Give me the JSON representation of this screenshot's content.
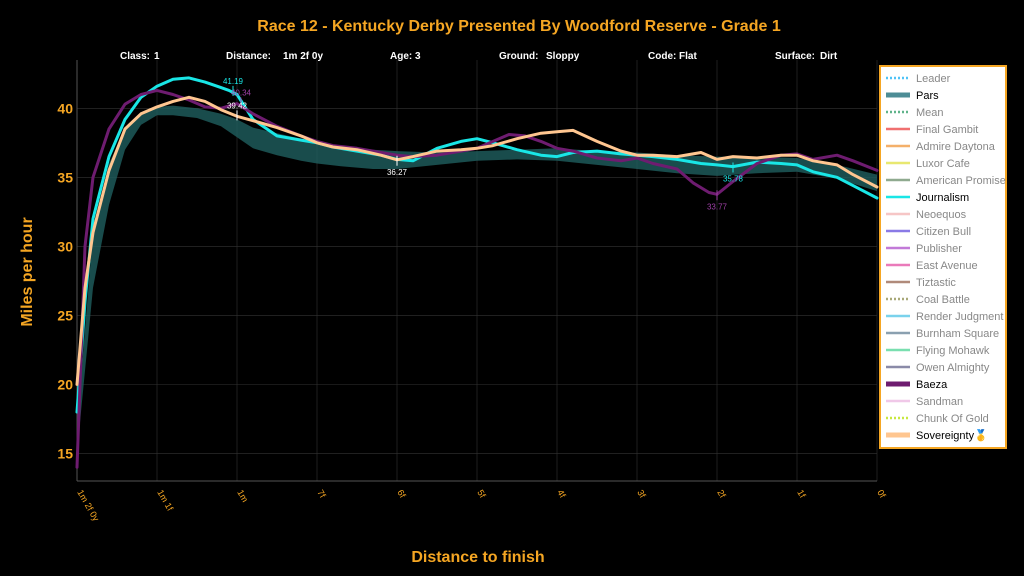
{
  "chart_data": {
    "type": "line",
    "title": "Race 12 - Kentucky Derby Presented By Woodford Reserve - Grade 1",
    "race_info": [
      {
        "key": "Class:",
        "value": "1"
      },
      {
        "key": "Distance:",
        "value": "1m 2f 0y"
      },
      {
        "key": "Age:",
        "value": "3"
      },
      {
        "key": "Ground:",
        "value": "Sloppy"
      },
      {
        "key": "Code:",
        "value": "Flat"
      },
      {
        "key": "Surface:",
        "value": "Dirt"
      }
    ],
    "xlabel": "Distance to finish",
    "ylabel": "Miles per hour",
    "xlim": [
      10,
      0
    ],
    "ylim": [
      13,
      43.5
    ],
    "y_ticks": [
      15,
      20,
      25,
      30,
      35,
      40
    ],
    "x_ticks": [
      {
        "value": 10,
        "label": "1m 2f 0y"
      },
      {
        "value": 9,
        "label": "1m 1f"
      },
      {
        "value": 8,
        "label": "1m"
      },
      {
        "value": 7,
        "label": "7f"
      },
      {
        "value": 6,
        "label": "6f"
      },
      {
        "value": 5,
        "label": "5f"
      },
      {
        "value": 4,
        "label": "4f"
      },
      {
        "value": 3,
        "label": "3f"
      },
      {
        "value": 2,
        "label": "2f"
      },
      {
        "value": 1,
        "label": "1f"
      },
      {
        "value": 0,
        "label": "0f"
      }
    ],
    "grid": true,
    "legend_position": "right",
    "pars_band": {
      "name": "Pars",
      "color": "#1f5f5f",
      "x": [
        10,
        9.8,
        9.6,
        9.4,
        9.2,
        9,
        8.8,
        8.5,
        8.2,
        8,
        7.8,
        7.5,
        7.2,
        7,
        6.7,
        6.3,
        6,
        5.5,
        5,
        4.5,
        4,
        3.5,
        3,
        2.5,
        2,
        1.5,
        1,
        0.5,
        0
      ],
      "upper": [
        17,
        31,
        36,
        38.5,
        39.6,
        40.1,
        40.2,
        40.0,
        39.6,
        39.2,
        38.6,
        38.2,
        37.8,
        37.5,
        37.3,
        37.0,
        36.9,
        36.8,
        36.9,
        37.0,
        37.1,
        36.9,
        36.8,
        36.6,
        36.5,
        36.5,
        36.4,
        35.9,
        35.2
      ],
      "lower": [
        15,
        27,
        33,
        37,
        38.8,
        39.5,
        39.5,
        39.3,
        38.7,
        37.9,
        37.1,
        36.6,
        36.2,
        36.0,
        35.8,
        35.6,
        35.6,
        35.9,
        36.2,
        36.3,
        36.2,
        35.9,
        35.6,
        35.3,
        35.1,
        35.3,
        35.4,
        34.9,
        34.0
      ]
    },
    "series": [
      {
        "name": "Journalism",
        "color": "#19e6e6",
        "x": [
          10,
          9.9,
          9.8,
          9.6,
          9.4,
          9.2,
          9,
          8.8,
          8.6,
          8.4,
          8.2,
          8.1,
          8,
          7.8,
          7.5,
          7.2,
          7,
          6.8,
          6.5,
          6.2,
          6,
          5.8,
          5.5,
          5.2,
          5,
          4.8,
          4.5,
          4.2,
          4,
          3.8,
          3.5,
          3.2,
          3,
          2.8,
          2.5,
          2.2,
          2,
          1.8,
          1.5,
          1.2,
          1,
          0.8,
          0.5,
          0.3,
          0
        ],
        "y": [
          18,
          26,
          32,
          36.5,
          39.2,
          40.8,
          41.6,
          42.1,
          42.2,
          41.9,
          41.5,
          41.3,
          41.0,
          39.2,
          38.0,
          37.7,
          37.5,
          37.2,
          36.9,
          36.6,
          36.3,
          36.2,
          37.1,
          37.6,
          37.8,
          37.5,
          37.0,
          36.6,
          36.5,
          36.8,
          36.9,
          36.7,
          36.6,
          36.5,
          36.3,
          36.0,
          35.9,
          35.78,
          36.1,
          36.0,
          35.9,
          35.4,
          35.0,
          34.4,
          33.5
        ]
      },
      {
        "name": "Baeza",
        "color": "#6e1c70",
        "x": [
          10,
          9.9,
          9.8,
          9.6,
          9.4,
          9.2,
          9,
          8.8,
          8.6,
          8.4,
          8.2,
          8,
          7.8,
          7.5,
          7.2,
          7,
          6.8,
          6.5,
          6.2,
          6,
          5.8,
          5.5,
          5.2,
          5,
          4.8,
          4.6,
          4.4,
          4.2,
          4,
          3.8,
          3.5,
          3.2,
          3,
          2.8,
          2.5,
          2.3,
          2.1,
          2,
          1.8,
          1.5,
          1.2,
          1,
          0.8,
          0.5,
          0.3,
          0
        ],
        "y": [
          14,
          30,
          35,
          38.5,
          40.3,
          41.0,
          41.3,
          41.0,
          40.6,
          40.1,
          40.0,
          40.34,
          39.6,
          38.7,
          38.0,
          37.6,
          37.3,
          37.1,
          36.8,
          36.6,
          36.5,
          36.6,
          36.9,
          37.1,
          37.6,
          38.1,
          38.0,
          37.6,
          37.1,
          36.9,
          36.4,
          36.2,
          36.4,
          36.0,
          35.6,
          34.6,
          33.9,
          33.77,
          34.7,
          36.0,
          36.6,
          36.7,
          36.3,
          36.6,
          36.2,
          35.5
        ]
      },
      {
        "name": "Sovereignty",
        "color": "#ffc690",
        "x": [
          10,
          9.9,
          9.8,
          9.6,
          9.4,
          9.2,
          9,
          8.8,
          8.6,
          8.4,
          8.2,
          8,
          7.8,
          7.5,
          7.2,
          7,
          6.8,
          6.5,
          6.2,
          6,
          5.8,
          5.5,
          5.2,
          5,
          4.8,
          4.5,
          4.2,
          4,
          3.8,
          3.5,
          3.2,
          3,
          2.8,
          2.5,
          2.2,
          2,
          1.8,
          1.5,
          1.2,
          1,
          0.8,
          0.5,
          0.3,
          0
        ],
        "y": [
          20,
          27,
          31,
          35.5,
          38.5,
          39.6,
          40.1,
          40.5,
          40.8,
          40.5,
          39.9,
          39.42,
          39.1,
          38.6,
          38.0,
          37.5,
          37.2,
          37.0,
          36.6,
          36.27,
          36.5,
          36.9,
          37.0,
          37.1,
          37.3,
          37.8,
          38.2,
          38.3,
          38.4,
          37.6,
          36.9,
          36.6,
          36.6,
          36.5,
          36.8,
          36.3,
          36.5,
          36.4,
          36.6,
          36.6,
          36.2,
          35.9,
          35.2,
          34.3
        ]
      }
    ],
    "annotations": [
      {
        "x": 8.05,
        "y": 41.19,
        "text": "41.19",
        "color": "#19e6e6",
        "marker": "down"
      },
      {
        "x": 7.95,
        "y": 40.34,
        "text": "40.34",
        "color": "#a040a8",
        "marker": "down"
      },
      {
        "x": 8.0,
        "y": 39.42,
        "text": "39.42",
        "color": "#ffffff",
        "marker": "down"
      },
      {
        "x": 6.0,
        "y": 36.27,
        "text": "36.27",
        "color": "#ffffff",
        "marker": "up"
      },
      {
        "x": 2.0,
        "y": 33.77,
        "text": "33.77",
        "color": "#a040a8",
        "marker": "up"
      },
      {
        "x": 1.8,
        "y": 35.78,
        "text": "35.78",
        "color": "#19e6e6",
        "marker": "up"
      }
    ],
    "legend": [
      {
        "name": "Leader",
        "color": "#4fc3f7",
        "style": "dotted",
        "emphasis": false
      },
      {
        "name": "Pars",
        "color": "#4d8d96",
        "style": "thick",
        "emphasis": true
      },
      {
        "name": "Mean",
        "color": "#5fb38a",
        "style": "dotted",
        "emphasis": false
      },
      {
        "name": "Final Gambit",
        "color": "#f07070",
        "style": "solid",
        "emphasis": false
      },
      {
        "name": "Admire Daytona",
        "color": "#f4b06a",
        "style": "solid",
        "emphasis": false
      },
      {
        "name": "Luxor Cafe",
        "color": "#e8e870",
        "style": "solid",
        "emphasis": false
      },
      {
        "name": "American Promise",
        "color": "#8faa8f",
        "style": "solid",
        "emphasis": false
      },
      {
        "name": "Journalism",
        "color": "#19e6e6",
        "style": "solid",
        "emphasis": true
      },
      {
        "name": "Neoequos",
        "color": "#f6c6c6",
        "style": "solid",
        "emphasis": false
      },
      {
        "name": "Citizen Bull",
        "color": "#8a7ae6",
        "style": "solid",
        "emphasis": false
      },
      {
        "name": "Publisher",
        "color": "#c27ad8",
        "style": "solid",
        "emphasis": false
      },
      {
        "name": "East Avenue",
        "color": "#ea7aba",
        "style": "solid",
        "emphasis": false
      },
      {
        "name": "Tiztastic",
        "color": "#b08a7a",
        "style": "solid",
        "emphasis": false
      },
      {
        "name": "Coal Battle",
        "color": "#a8a878",
        "style": "dotted",
        "emphasis": false
      },
      {
        "name": "Render Judgment",
        "color": "#7ad2ec",
        "style": "solid",
        "emphasis": false
      },
      {
        "name": "Burnham Square",
        "color": "#8aa0b0",
        "style": "solid",
        "emphasis": false
      },
      {
        "name": "Flying Mohawk",
        "color": "#7adfb0",
        "style": "solid",
        "emphasis": false
      },
      {
        "name": "Owen Almighty",
        "color": "#8a8aa8",
        "style": "solid",
        "emphasis": false
      },
      {
        "name": "Baeza",
        "color": "#6e1c70",
        "style": "thick",
        "emphasis": true
      },
      {
        "name": "Sandman",
        "color": "#f0c8e8",
        "style": "solid",
        "emphasis": false
      },
      {
        "name": "Chunk Of Gold",
        "color": "#c8e840",
        "style": "dotted",
        "emphasis": false
      },
      {
        "name": "Sovereignty🥇",
        "color": "#ffc690",
        "style": "thick",
        "emphasis": true
      }
    ],
    "colors": {
      "background": "#000000",
      "accent": "#f5a623",
      "grid": "#333333",
      "legend_bg": "#ffffff",
      "legend_border": "#f5a623"
    }
  }
}
